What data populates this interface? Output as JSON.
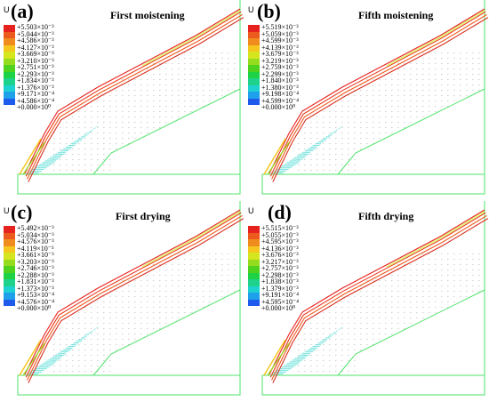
{
  "panels": [
    {
      "letter": "(a)",
      "title": "First moistening",
      "variable": "U",
      "legend_values": [
        "+5.503×10⁻³",
        "+5.044×10⁻³",
        "+4.586×10⁻³",
        "+4.127×10⁻³",
        "+3.669×10⁻³",
        "+3.210×10⁻³",
        "+2.751×10⁻³",
        "+2.293×10⁻³",
        "+1.834×10⁻³",
        "+1.376×10⁻³",
        "+9.171×10⁻⁴",
        "+4.586×10⁻⁴",
        "+0.000×10⁰"
      ]
    },
    {
      "letter": "(b)",
      "title": "Fifth moistening",
      "variable": "U",
      "legend_values": [
        "+5.519×10⁻³",
        "+5.059×10⁻³",
        "+4.599×10⁻³",
        "+4.139×10⁻³",
        "+3.679×10⁻³",
        "+3.219×10⁻³",
        "+2.759×10⁻³",
        "+2.299×10⁻³",
        "+1.840×10⁻³",
        "+1.380×10⁻³",
        "+9.198×10⁻⁴",
        "+4.599×10⁻⁴",
        "+0.000×10⁰"
      ]
    },
    {
      "letter": "(c)",
      "title": "First drying",
      "variable": "U",
      "legend_values": [
        "+5.492×10⁻³",
        "+5.034×10⁻³",
        "+4.576×10⁻³",
        "+4.119×10⁻³",
        "+3.661×10⁻³",
        "+3.203×10⁻³",
        "+2.746×10⁻³",
        "+2.288×10⁻³",
        "+1.831×10⁻³",
        "+1.373×10⁻³",
        "+9.153×10⁻⁴",
        "+4.576×10⁻⁴",
        "+0.000×10⁰"
      ]
    },
    {
      "letter": "(d)",
      "title": "Fifth drying",
      "variable": "U",
      "legend_values": [
        "+5.515×10⁻³",
        "+5.055×10⁻³",
        "+4.595×10⁻³",
        "+4.136×10⁻³",
        "+3.676×10⁻³",
        "+3.217×10⁻³",
        "+2.757×10⁻³",
        "+2.298×10⁻³",
        "+1.838×10⁻³",
        "+1.379×10⁻³",
        "+9.191×10⁻⁴",
        "+4.595×10⁻⁴",
        "+0.000×10⁰"
      ]
    }
  ],
  "legend_colors": [
    "#e6221e",
    "#ec5a1e",
    "#f08c1e",
    "#f5c71e",
    "#d6e61e",
    "#96dc1e",
    "#4ed21e",
    "#1ed246",
    "#1ed28c",
    "#1ed2d2",
    "#1ea0eb",
    "#1e5aeb",
    "#1e1ee6"
  ],
  "mesh_color": "#4fe36a"
}
